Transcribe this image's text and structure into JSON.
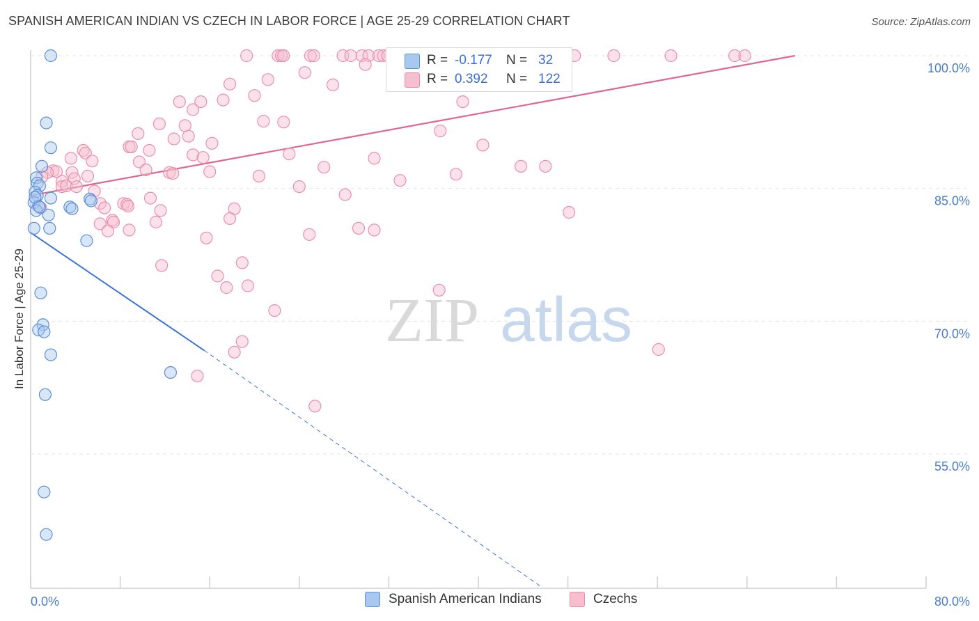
{
  "title": "SPANISH AMERICAN INDIAN VS CZECH IN LABOR FORCE | AGE 25-29 CORRELATION CHART",
  "source": "Source: ZipAtlas.com",
  "watermark": {
    "zip": "ZIP",
    "atlas": "atlas"
  },
  "colors": {
    "blue_fill": "#a9c8f0",
    "blue_stroke": "#5b8fd6",
    "blue_line": "#3a74d6",
    "pink_fill": "#f6bfd0",
    "pink_stroke": "#e98fac",
    "pink_line": "#e0668f",
    "tick_text": "#4a7cc8",
    "grid": "#e3e3e3"
  },
  "stats": {
    "rows": [
      {
        "series": "Spanish American Indians",
        "r_label": "R =",
        "r_value": "-0.177",
        "n_label": "N =",
        "n_value": "32"
      },
      {
        "series": "Czechs",
        "r_label": "R =",
        "r_value": "0.392",
        "n_label": "N =",
        "n_value": "122"
      }
    ]
  },
  "legend": {
    "items": [
      "Spanish American Indians",
      "Czechs"
    ]
  },
  "chart_data": {
    "type": "scatter",
    "title": "SPANISH AMERICAN INDIAN VS CZECH IN LABOR FORCE | AGE 25-29 CORRELATION CHART",
    "xlabel": "",
    "ylabel": "In Labor Force | Age 25-29",
    "xlim": [
      0,
      80
    ],
    "ylim": [
      40,
      101
    ],
    "x_tick_labels": [
      "0.0%",
      "80.0%"
    ],
    "y_ticks": [
      55,
      70,
      85,
      100
    ],
    "y_tick_labels": [
      "55.0%",
      "70.0%",
      "85.0%",
      "100.0%"
    ],
    "grid": true,
    "series": [
      {
        "name": "Spanish American Indians",
        "r": -0.177,
        "n": 32,
        "trend": {
          "x0": 0,
          "y0": 80.0,
          "x1": 15.5,
          "y1": 66.7,
          "dash_to_x": 45.6,
          "dash_to_y": 40.0
        },
        "points": [
          [
            1.8,
            100
          ],
          [
            1.4,
            92.4
          ],
          [
            1.8,
            89.6
          ],
          [
            1.0,
            87.5
          ],
          [
            0.5,
            86.2
          ],
          [
            0.6,
            85.6
          ],
          [
            0.8,
            85.3
          ],
          [
            0.4,
            84.6
          ],
          [
            0.6,
            84.2
          ],
          [
            1.8,
            83.9
          ],
          [
            5.3,
            83.8
          ],
          [
            5.4,
            83.6
          ],
          [
            0.3,
            83.4
          ],
          [
            0.7,
            83.0
          ],
          [
            3.5,
            82.9
          ],
          [
            3.7,
            82.7
          ],
          [
            0.5,
            82.5
          ],
          [
            1.6,
            82.0
          ],
          [
            0.3,
            80.5
          ],
          [
            1.7,
            80.5
          ],
          [
            5.0,
            79.1
          ],
          [
            0.9,
            73.2
          ],
          [
            1.1,
            69.6
          ],
          [
            0.7,
            69.0
          ],
          [
            1.2,
            68.8
          ],
          [
            1.8,
            66.2
          ],
          [
            12.5,
            64.2
          ],
          [
            1.3,
            61.7
          ],
          [
            1.2,
            50.7
          ],
          [
            1.4,
            45.9
          ],
          [
            0.4,
            84.0
          ],
          [
            0.8,
            82.9
          ]
        ]
      },
      {
        "name": "Czechs",
        "r": 0.392,
        "n": 122,
        "trend": {
          "x0": 0,
          "y0": 84.2,
          "x1": 68.3,
          "y1": 100.0
        },
        "points": [
          [
            19.3,
            100
          ],
          [
            22.1,
            100
          ],
          [
            22.4,
            100
          ],
          [
            22.6,
            100
          ],
          [
            25.0,
            100
          ],
          [
            25.3,
            100
          ],
          [
            27.9,
            100
          ],
          [
            28.6,
            100
          ],
          [
            29.6,
            100
          ],
          [
            30.2,
            100
          ],
          [
            31.1,
            100
          ],
          [
            31.5,
            100
          ],
          [
            31.9,
            100
          ],
          [
            32.9,
            100
          ],
          [
            33.2,
            100
          ],
          [
            33.7,
            100
          ],
          [
            35.0,
            100
          ],
          [
            35.7,
            100
          ],
          [
            36.1,
            100
          ],
          [
            36.9,
            100
          ],
          [
            37.3,
            100
          ],
          [
            38.3,
            100
          ],
          [
            39.4,
            100
          ],
          [
            40.5,
            100
          ],
          [
            42.7,
            100
          ],
          [
            43.0,
            100
          ],
          [
            43.7,
            100
          ],
          [
            45.7,
            100
          ],
          [
            45.9,
            100
          ],
          [
            47.4,
            100
          ],
          [
            48.6,
            100
          ],
          [
            52.1,
            100
          ],
          [
            57.2,
            100
          ],
          [
            62.9,
            100
          ],
          [
            63.8,
            100
          ],
          [
            29.9,
            99.0
          ],
          [
            24.5,
            98.1
          ],
          [
            21.2,
            97.3
          ],
          [
            27.0,
            96.7
          ],
          [
            17.8,
            96.8
          ],
          [
            20.0,
            95.5
          ],
          [
            38.6,
            94.8
          ],
          [
            17.2,
            95.0
          ],
          [
            13.3,
            94.8
          ],
          [
            15.2,
            94.8
          ],
          [
            14.5,
            93.9
          ],
          [
            20.8,
            92.6
          ],
          [
            22.6,
            92.5
          ],
          [
            11.5,
            92.3
          ],
          [
            13.8,
            92.1
          ],
          [
            36.6,
            91.5
          ],
          [
            9.6,
            91.2
          ],
          [
            12.8,
            90.6
          ],
          [
            14.1,
            90.9
          ],
          [
            16.2,
            90.1
          ],
          [
            40.4,
            89.9
          ],
          [
            8.8,
            89.7
          ],
          [
            9.0,
            89.7
          ],
          [
            4.7,
            89.3
          ],
          [
            10.6,
            89.3
          ],
          [
            23.1,
            88.9
          ],
          [
            4.9,
            89.0
          ],
          [
            14.5,
            88.8
          ],
          [
            3.6,
            88.4
          ],
          [
            15.4,
            88.5
          ],
          [
            30.7,
            88.4
          ],
          [
            9.7,
            88.0
          ],
          [
            5.5,
            88.1
          ],
          [
            26.2,
            87.4
          ],
          [
            43.8,
            87.5
          ],
          [
            46.0,
            87.5
          ],
          [
            10.3,
            87.1
          ],
          [
            2.0,
            87.0
          ],
          [
            2.3,
            86.9
          ],
          [
            1.5,
            86.8
          ],
          [
            3.7,
            86.8
          ],
          [
            12.4,
            86.8
          ],
          [
            16.0,
            86.9
          ],
          [
            12.7,
            86.7
          ],
          [
            38.0,
            86.6
          ],
          [
            5.1,
            86.4
          ],
          [
            20.4,
            86.4
          ],
          [
            1.0,
            86.3
          ],
          [
            3.9,
            86.1
          ],
          [
            2.8,
            85.8
          ],
          [
            33.0,
            85.9
          ],
          [
            24.0,
            85.2
          ],
          [
            2.8,
            85.2
          ],
          [
            3.2,
            85.3
          ],
          [
            4.1,
            85.2
          ],
          [
            5.7,
            84.7
          ],
          [
            28.1,
            84.3
          ],
          [
            10.7,
            83.9
          ],
          [
            6.2,
            83.3
          ],
          [
            8.3,
            83.3
          ],
          [
            8.6,
            83.2
          ],
          [
            8.7,
            83.0
          ],
          [
            6.6,
            82.8
          ],
          [
            11.6,
            82.5
          ],
          [
            18.2,
            82.7
          ],
          [
            0.9,
            82.8
          ],
          [
            48.1,
            82.3
          ],
          [
            17.8,
            81.6
          ],
          [
            7.3,
            81.4
          ],
          [
            7.4,
            81.2
          ],
          [
            11.2,
            81.2
          ],
          [
            6.2,
            81.0
          ],
          [
            8.8,
            80.3
          ],
          [
            29.3,
            80.5
          ],
          [
            30.7,
            80.3
          ],
          [
            6.9,
            80.2
          ],
          [
            24.9,
            79.8
          ],
          [
            15.7,
            79.4
          ],
          [
            11.7,
            76.3
          ],
          [
            18.9,
            76.6
          ],
          [
            16.7,
            75.1
          ],
          [
            17.5,
            73.8
          ],
          [
            19.4,
            74.0
          ],
          [
            36.5,
            73.5
          ],
          [
            21.8,
            71.2
          ],
          [
            18.9,
            67.7
          ],
          [
            18.2,
            66.5
          ],
          [
            56.1,
            66.8
          ],
          [
            14.9,
            63.8
          ],
          [
            25.4,
            60.4
          ]
        ]
      }
    ]
  }
}
